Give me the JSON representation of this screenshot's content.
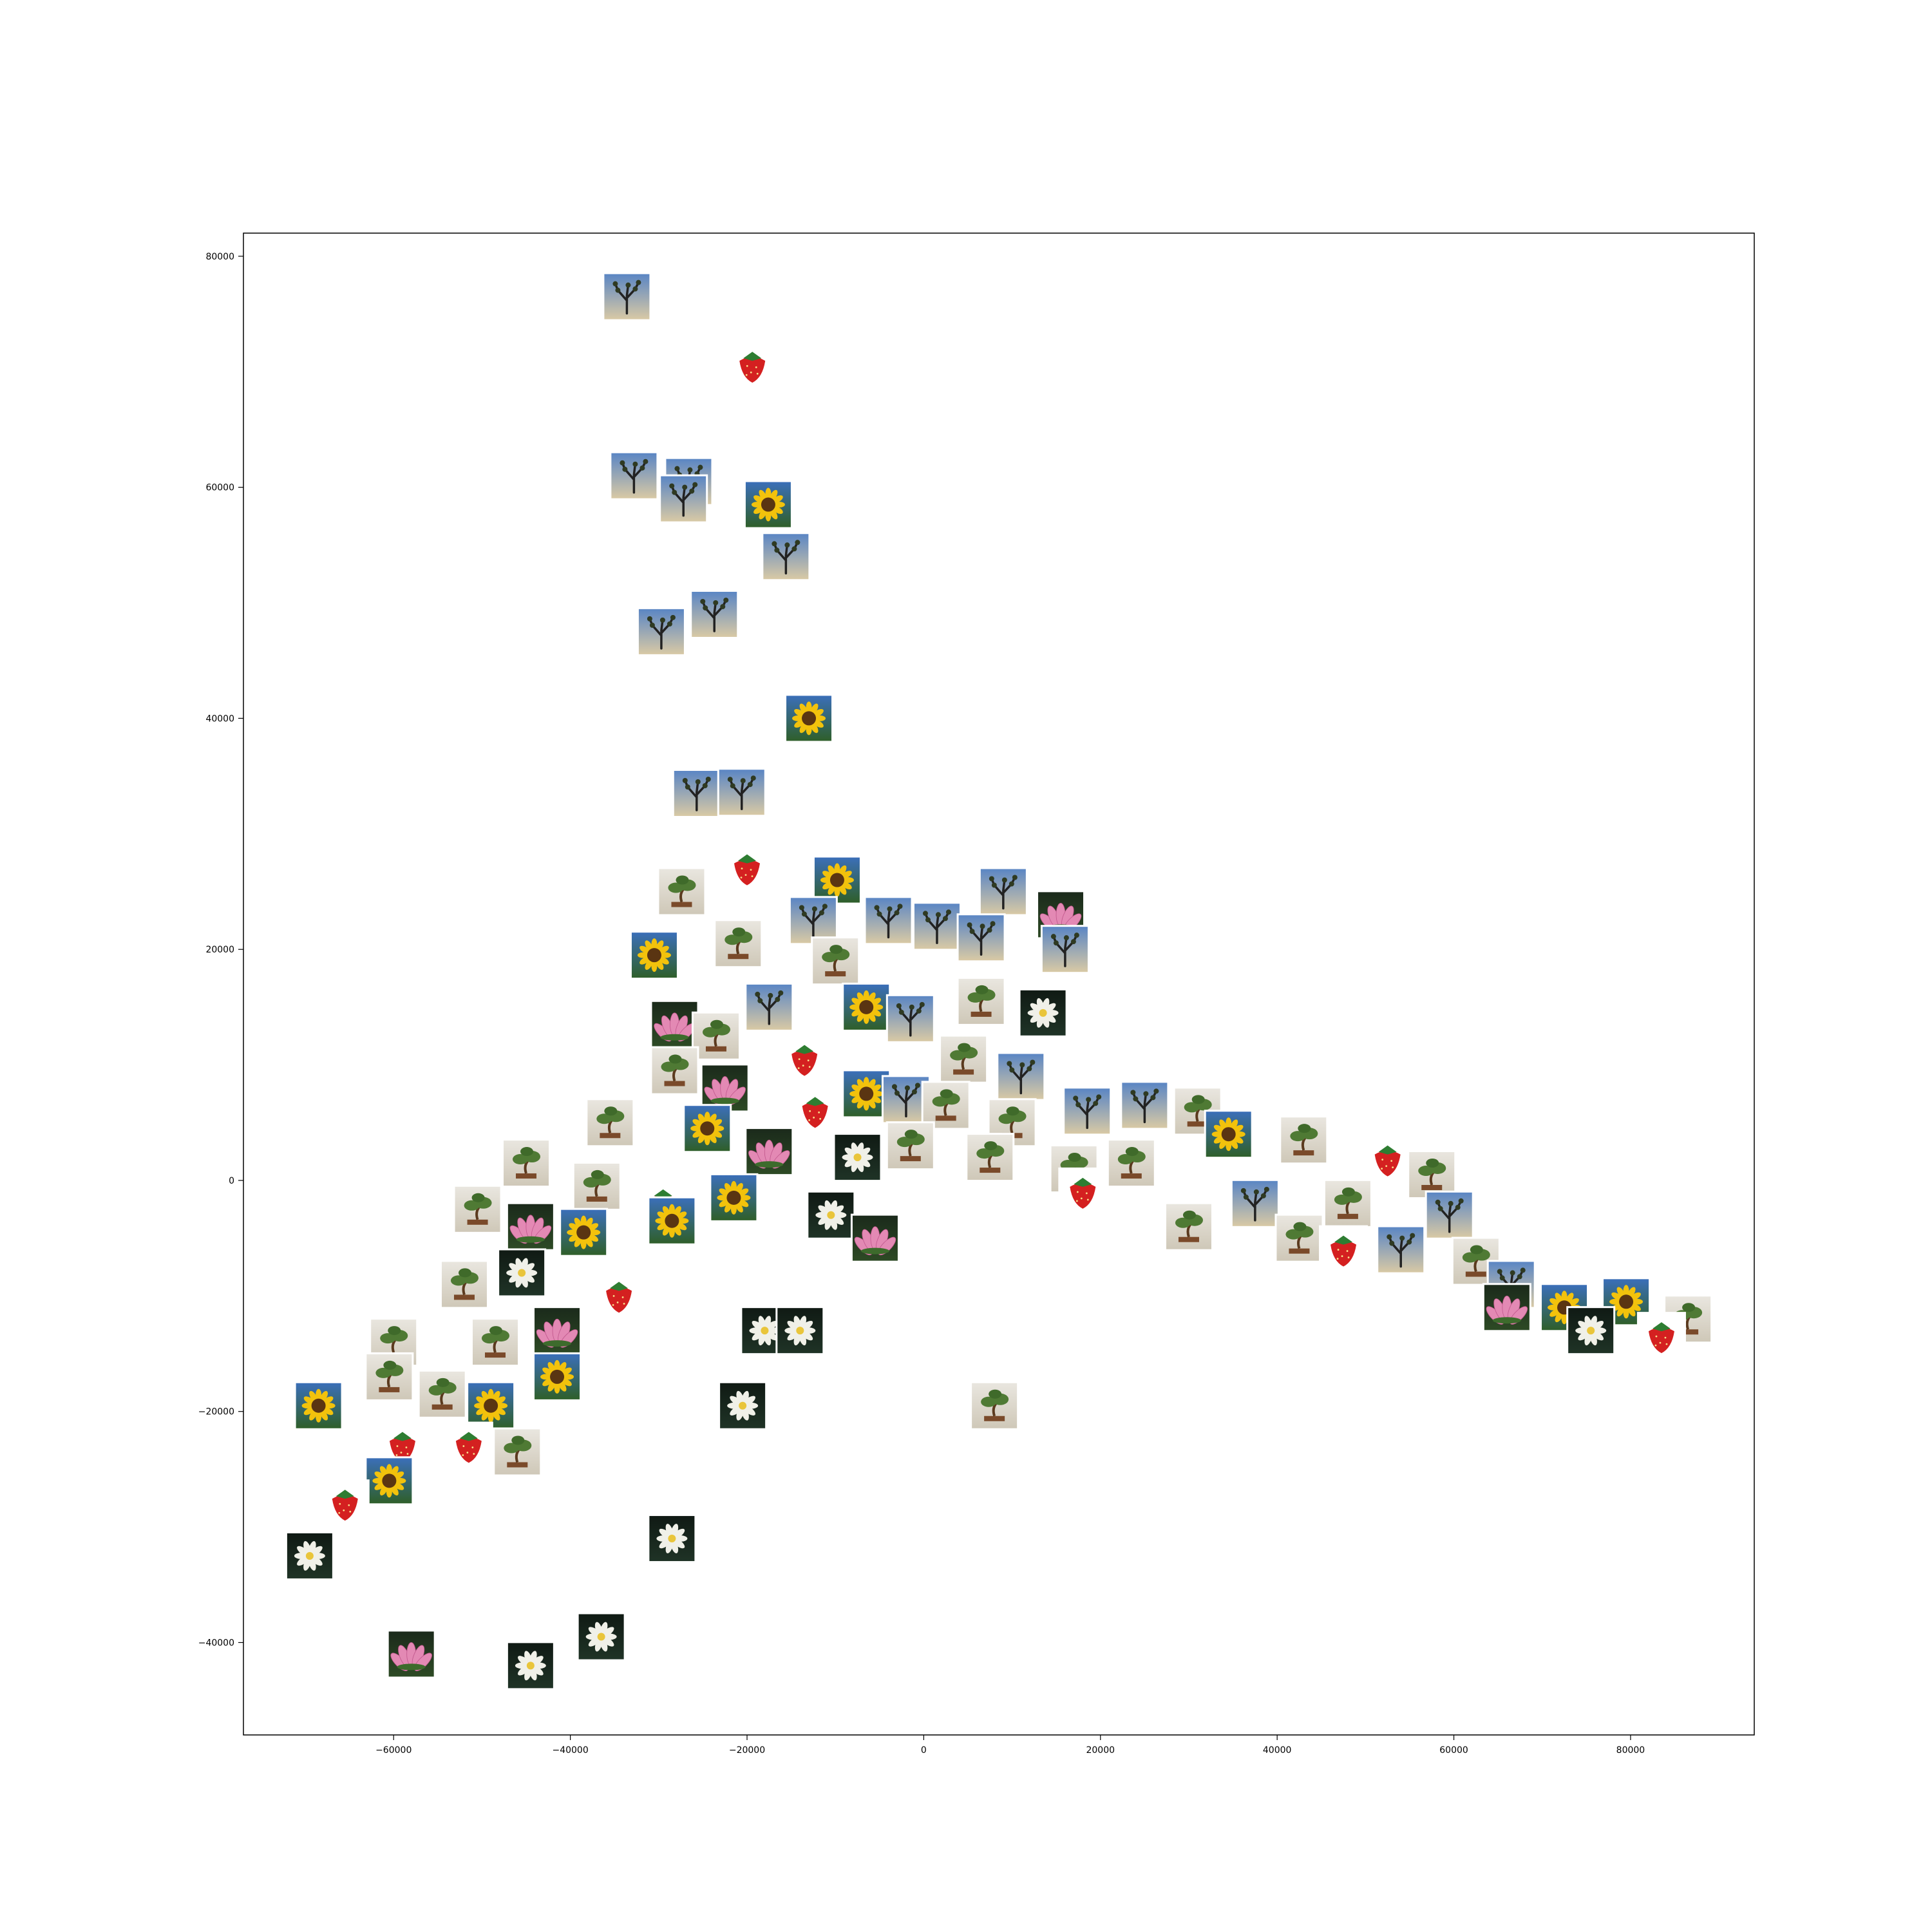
{
  "chart_data": {
    "type": "scatter",
    "marker": "image-thumbnail",
    "xlim": [
      -77000,
      94000
    ],
    "ylim": [
      -48000,
      82000
    ],
    "xticks": [
      -60000,
      -40000,
      -20000,
      0,
      20000,
      40000,
      60000,
      80000
    ],
    "yticks": [
      -40000,
      -20000,
      0,
      20000,
      40000,
      60000,
      80000
    ],
    "xtick_labels": [
      "−60000",
      "−40000",
      "−20000",
      "0",
      "20000",
      "40000",
      "60000",
      "80000"
    ],
    "ytick_labels": [
      "−40000",
      "−20000",
      "0",
      "20000",
      "40000",
      "60000",
      "80000"
    ],
    "grid": false,
    "title": "",
    "xlabel": "",
    "ylabel": "",
    "categories": [
      "joshua-tree",
      "strawberry",
      "sunflower",
      "bonsai",
      "lotus",
      "water-lily"
    ],
    "category_colors": {
      "joshua-tree": "#4a6fa5",
      "strawberry": "#d42020",
      "sunflower": "#f2c20c",
      "bonsai": "#4f7a34",
      "lotus": "#e389b4",
      "water-lily": "#f0f0e8"
    },
    "points": [
      {
        "x": -33600,
        "y": 76500,
        "category": "joshua-tree"
      },
      {
        "x": -19400,
        "y": 70500,
        "category": "strawberry"
      },
      {
        "x": -32800,
        "y": 61000,
        "category": "joshua-tree"
      },
      {
        "x": -26600,
        "y": 60500,
        "category": "joshua-tree"
      },
      {
        "x": -27200,
        "y": 59000,
        "category": "joshua-tree"
      },
      {
        "x": -17600,
        "y": 58500,
        "category": "sunflower"
      },
      {
        "x": -15600,
        "y": 54000,
        "category": "joshua-tree"
      },
      {
        "x": -29700,
        "y": 47500,
        "category": "joshua-tree"
      },
      {
        "x": -23700,
        "y": 49000,
        "category": "joshua-tree"
      },
      {
        "x": -13000,
        "y": 40000,
        "category": "sunflower"
      },
      {
        "x": -25700,
        "y": 33500,
        "category": "joshua-tree"
      },
      {
        "x": -20600,
        "y": 33600,
        "category": "joshua-tree"
      },
      {
        "x": -20000,
        "y": 27000,
        "category": "strawberry"
      },
      {
        "x": -27400,
        "y": 25000,
        "category": "bonsai"
      },
      {
        "x": -9800,
        "y": 26000,
        "category": "sunflower"
      },
      {
        "x": -12500,
        "y": 22500,
        "category": "joshua-tree"
      },
      {
        "x": -4000,
        "y": 22500,
        "category": "joshua-tree"
      },
      {
        "x": 9000,
        "y": 25000,
        "category": "joshua-tree"
      },
      {
        "x": 15500,
        "y": 23000,
        "category": "lotus"
      },
      {
        "x": 16000,
        "y": 20000,
        "category": "joshua-tree"
      },
      {
        "x": 1500,
        "y": 22000,
        "category": "joshua-tree"
      },
      {
        "x": 6500,
        "y": 21000,
        "category": "joshua-tree"
      },
      {
        "x": -30500,
        "y": 19500,
        "category": "sunflower"
      },
      {
        "x": -21000,
        "y": 20500,
        "category": "bonsai"
      },
      {
        "x": -10000,
        "y": 19000,
        "category": "bonsai"
      },
      {
        "x": -17500,
        "y": 15000,
        "category": "joshua-tree"
      },
      {
        "x": -6500,
        "y": 15000,
        "category": "sunflower"
      },
      {
        "x": -1500,
        "y": 14000,
        "category": "joshua-tree"
      },
      {
        "x": 6500,
        "y": 15500,
        "category": "bonsai"
      },
      {
        "x": 13500,
        "y": 14500,
        "category": "water-lily"
      },
      {
        "x": -28200,
        "y": 13500,
        "category": "lotus"
      },
      {
        "x": -23500,
        "y": 12500,
        "category": "bonsai"
      },
      {
        "x": -13500,
        "y": 10500,
        "category": "strawberry"
      },
      {
        "x": 4500,
        "y": 10500,
        "category": "bonsai"
      },
      {
        "x": 11000,
        "y": 9000,
        "category": "joshua-tree"
      },
      {
        "x": -28200,
        "y": 9500,
        "category": "bonsai"
      },
      {
        "x": -22500,
        "y": 8000,
        "category": "lotus"
      },
      {
        "x": -12300,
        "y": 6000,
        "category": "strawberry"
      },
      {
        "x": -6500,
        "y": 7500,
        "category": "sunflower"
      },
      {
        "x": -2000,
        "y": 7000,
        "category": "joshua-tree"
      },
      {
        "x": 2500,
        "y": 6500,
        "category": "bonsai"
      },
      {
        "x": 10000,
        "y": 5000,
        "category": "bonsai"
      },
      {
        "x": 18500,
        "y": 6000,
        "category": "joshua-tree"
      },
      {
        "x": 25000,
        "y": 6500,
        "category": "joshua-tree"
      },
      {
        "x": 31000,
        "y": 6000,
        "category": "bonsai"
      },
      {
        "x": -35500,
        "y": 5000,
        "category": "bonsai"
      },
      {
        "x": -24500,
        "y": 4500,
        "category": "sunflower"
      },
      {
        "x": -17500,
        "y": 2500,
        "category": "lotus"
      },
      {
        "x": -7500,
        "y": 2000,
        "category": "water-lily"
      },
      {
        "x": -1500,
        "y": 3000,
        "category": "bonsai"
      },
      {
        "x": 7500,
        "y": 2000,
        "category": "bonsai"
      },
      {
        "x": 17000,
        "y": 1000,
        "category": "bonsai"
      },
      {
        "x": 23500,
        "y": 1500,
        "category": "bonsai"
      },
      {
        "x": 34500,
        "y": 4000,
        "category": "sunflower"
      },
      {
        "x": 43000,
        "y": 3500,
        "category": "bonsai"
      },
      {
        "x": 52500,
        "y": 1800,
        "category": "strawberry"
      },
      {
        "x": 57500,
        "y": 500,
        "category": "bonsai"
      },
      {
        "x": -45000,
        "y": 1500,
        "category": "bonsai"
      },
      {
        "x": -37000,
        "y": -500,
        "category": "bonsai"
      },
      {
        "x": -29500,
        "y": -2000,
        "category": "strawberry"
      },
      {
        "x": -21500,
        "y": -1500,
        "category": "sunflower"
      },
      {
        "x": -10500,
        "y": -3000,
        "category": "water-lily"
      },
      {
        "x": -5500,
        "y": -5000,
        "category": "lotus"
      },
      {
        "x": 18000,
        "y": -1000,
        "category": "strawberry"
      },
      {
        "x": 30000,
        "y": -4000,
        "category": "bonsai"
      },
      {
        "x": 37500,
        "y": -2000,
        "category": "joshua-tree"
      },
      {
        "x": 42500,
        "y": -5000,
        "category": "bonsai"
      },
      {
        "x": 48000,
        "y": -2000,
        "category": "bonsai"
      },
      {
        "x": 54000,
        "y": -6000,
        "category": "joshua-tree"
      },
      {
        "x": 59500,
        "y": -3000,
        "category": "joshua-tree"
      },
      {
        "x": -50500,
        "y": -2500,
        "category": "bonsai"
      },
      {
        "x": -44500,
        "y": -4000,
        "category": "lotus"
      },
      {
        "x": -38500,
        "y": -4500,
        "category": "sunflower"
      },
      {
        "x": -28500,
        "y": -3500,
        "category": "sunflower"
      },
      {
        "x": -52000,
        "y": -9000,
        "category": "bonsai"
      },
      {
        "x": -45500,
        "y": -8000,
        "category": "water-lily"
      },
      {
        "x": -34500,
        "y": -10000,
        "category": "strawberry"
      },
      {
        "x": 47500,
        "y": -6000,
        "category": "strawberry"
      },
      {
        "x": 62500,
        "y": -7000,
        "category": "bonsai"
      },
      {
        "x": 66500,
        "y": -9000,
        "category": "joshua-tree"
      },
      {
        "x": 66000,
        "y": -11000,
        "category": "lotus"
      },
      {
        "x": 72500,
        "y": -11000,
        "category": "sunflower"
      },
      {
        "x": 79500,
        "y": -10500,
        "category": "sunflower"
      },
      {
        "x": 86500,
        "y": -12000,
        "category": "bonsai"
      },
      {
        "x": 83500,
        "y": -13500,
        "category": "strawberry"
      },
      {
        "x": 75500,
        "y": -13000,
        "category": "water-lily"
      },
      {
        "x": -60000,
        "y": -14000,
        "category": "bonsai"
      },
      {
        "x": -48500,
        "y": -14000,
        "category": "bonsai"
      },
      {
        "x": -41500,
        "y": -13000,
        "category": "lotus"
      },
      {
        "x": -18000,
        "y": -13000,
        "category": "water-lily"
      },
      {
        "x": -14000,
        "y": -13000,
        "category": "water-lily"
      },
      {
        "x": -60500,
        "y": -17000,
        "category": "bonsai"
      },
      {
        "x": -54500,
        "y": -18500,
        "category": "bonsai"
      },
      {
        "x": -49000,
        "y": -19500,
        "category": "sunflower"
      },
      {
        "x": -41500,
        "y": -17000,
        "category": "sunflower"
      },
      {
        "x": -68500,
        "y": -19500,
        "category": "sunflower"
      },
      {
        "x": -59000,
        "y": -23000,
        "category": "strawberry"
      },
      {
        "x": -51500,
        "y": -23000,
        "category": "strawberry"
      },
      {
        "x": -46000,
        "y": -23500,
        "category": "bonsai"
      },
      {
        "x": -60500,
        "y": -26000,
        "category": "sunflower"
      },
      {
        "x": -65500,
        "y": -28000,
        "category": "strawberry"
      },
      {
        "x": -20500,
        "y": -19500,
        "category": "water-lily"
      },
      {
        "x": 8000,
        "y": -19500,
        "category": "bonsai"
      },
      {
        "x": -28500,
        "y": -31000,
        "category": "water-lily"
      },
      {
        "x": -69500,
        "y": -32500,
        "category": "water-lily"
      },
      {
        "x": -58000,
        "y": -41000,
        "category": "lotus"
      },
      {
        "x": -44500,
        "y": -42000,
        "category": "water-lily"
      },
      {
        "x": -36500,
        "y": -39500,
        "category": "water-lily"
      }
    ]
  }
}
